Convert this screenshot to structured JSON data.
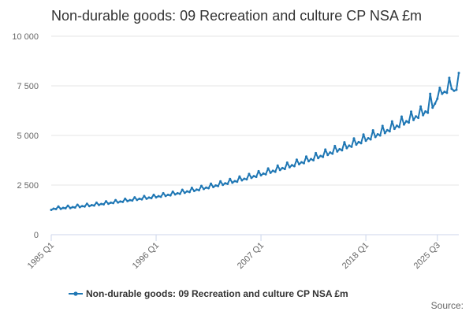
{
  "colors": {
    "series": "#1f77b4",
    "grid": "#e6e6e6",
    "axis": "#ccd6eb",
    "title": "#333333",
    "tick_text": "#666666"
  },
  "chart_data": {
    "type": "line",
    "title": "Non-durable goods: 09 Recreation and culture CP NSA £m",
    "xlabel": "",
    "ylabel": "",
    "ylim": [
      0,
      10000
    ],
    "y_ticks": [
      0,
      2500,
      5000,
      7500,
      10000
    ],
    "y_tick_labels": [
      "0",
      "2 500",
      "5 000",
      "7 500",
      "10 000"
    ],
    "x_tick_labels": [
      "1985 Q1",
      "1996 Q1",
      "2007 Q1",
      "2018 Q1",
      "2025 Q3"
    ],
    "x_tick_indices": [
      0,
      44,
      88,
      132,
      162
    ],
    "legend": "Non-durable goods: 09 Recreation and culture CP NSA £m",
    "legend_position": "bottom-center",
    "source_label": "Source:",
    "series": [
      {
        "name": "Non-durable goods: 09 Recreation and culture CP NSA £m",
        "x_start": "1985 Q1",
        "frequency": "quarterly",
        "values": [
          1250,
          1310,
          1290,
          1420,
          1300,
          1350,
          1330,
          1460,
          1340,
          1390,
          1370,
          1510,
          1390,
          1440,
          1420,
          1560,
          1440,
          1490,
          1470,
          1610,
          1500,
          1550,
          1530,
          1680,
          1560,
          1610,
          1590,
          1740,
          1620,
          1670,
          1650,
          1810,
          1690,
          1740,
          1720,
          1880,
          1750,
          1810,
          1780,
          1950,
          1810,
          1870,
          1840,
          2010,
          1880,
          1940,
          1910,
          2090,
          1950,
          2010,
          1980,
          2170,
          2030,
          2090,
          2060,
          2260,
          2110,
          2180,
          2150,
          2360,
          2200,
          2270,
          2240,
          2460,
          2300,
          2370,
          2340,
          2570,
          2400,
          2480,
          2450,
          2690,
          2510,
          2590,
          2560,
          2810,
          2620,
          2700,
          2670,
          2930,
          2740,
          2820,
          2790,
          3060,
          2860,
          2950,
          2910,
          3200,
          2990,
          3080,
          3040,
          3340,
          3120,
          3220,
          3170,
          3480,
          3260,
          3360,
          3310,
          3630,
          3400,
          3500,
          3450,
          3780,
          3550,
          3650,
          3600,
          3940,
          3700,
          3810,
          3750,
          4110,
          3860,
          3970,
          3920,
          4290,
          4020,
          4140,
          4080,
          4470,
          4190,
          4310,
          4250,
          4660,
          4360,
          4490,
          4430,
          4850,
          4540,
          4670,
          4610,
          5050,
          4730,
          4860,
          4800,
          5260,
          4920,
          5060,
          5000,
          5480,
          5120,
          5270,
          5210,
          5710,
          5330,
          5490,
          5420,
          5950,
          5550,
          5720,
          5650,
          6200,
          5780,
          5960,
          5890,
          6460,
          6020,
          6210,
          6140,
          7100,
          6400,
          6600,
          6850,
          7400,
          7100,
          7200,
          7150,
          7900,
          7350,
          7250,
          7300,
          8150
        ]
      }
    ]
  }
}
